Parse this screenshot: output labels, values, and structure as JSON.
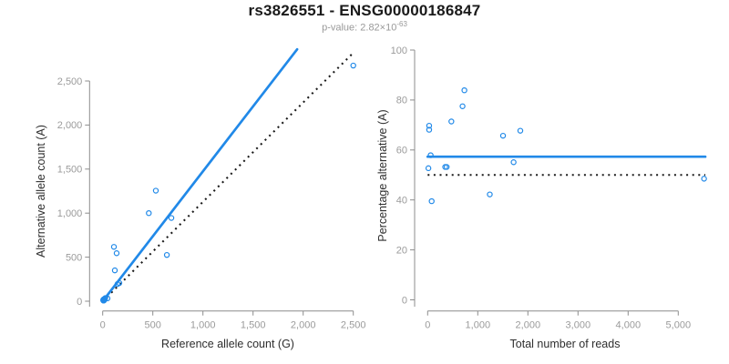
{
  "header": {
    "title": "rs3826551 - ENSG00000186847",
    "pvalue_base": "p-value: 2.82×10",
    "pvalue_exponent": "-63"
  },
  "colors": {
    "accent_blue": "#2189e8",
    "axis_gray": "#8c8c8c",
    "tick_label_gray": "#9b9b9b",
    "dotted_black": "#1a1a1a"
  },
  "chart_data": [
    {
      "type": "scatter",
      "xlabel": "Reference allele count (G)",
      "ylabel": "Alternative allele count (A)",
      "xlim": [
        0,
        2500
      ],
      "ylim": [
        0,
        2500
      ],
      "grid": false,
      "xticks": {
        "values": [
          0,
          500,
          1000,
          1500,
          2000,
          2500
        ],
        "labels": [
          "0",
          "500",
          "1,000",
          "1,500",
          "2,000",
          "2,500"
        ]
      },
      "yticks": {
        "values": [
          0,
          500,
          1000,
          1500,
          2000,
          2500
        ],
        "labels": [
          "0",
          "500",
          "1,000",
          "1,500",
          "2,000",
          "2,500"
        ]
      },
      "points": [
        {
          "x": 530,
          "y": 1255
        },
        {
          "x": 460,
          "y": 1000
        },
        {
          "x": 685,
          "y": 945
        },
        {
          "x": 112,
          "y": 617
        },
        {
          "x": 139,
          "y": 545
        },
        {
          "x": 640,
          "y": 525
        },
        {
          "x": 121,
          "y": 350
        },
        {
          "x": 148,
          "y": 195
        },
        {
          "x": 166,
          "y": 206
        },
        {
          "x": 2500,
          "y": 2675
        },
        {
          "x": 25,
          "y": 35
        },
        {
          "x": 48,
          "y": 32
        },
        {
          "x": 7,
          "y": 8
        },
        {
          "x": 15,
          "y": 25
        },
        {
          "x": 10,
          "y": 18
        },
        {
          "x": 10,
          "y": 14,
          "filled": true
        }
      ],
      "lines": [
        {
          "name": "identity-line",
          "style": "dotted",
          "x1": 0,
          "y1": 0,
          "x2": 2500,
          "y2": 2820
        },
        {
          "name": "fit-line",
          "style": "solid",
          "x1": 0,
          "y1": 0,
          "x2": 1940,
          "y2": 2860
        }
      ]
    },
    {
      "type": "scatter",
      "xlabel": "Total number of reads",
      "ylabel": "Percentage alternative (A)",
      "xlim": [
        0,
        5000
      ],
      "ylim": [
        0,
        100
      ],
      "grid": false,
      "xticks": {
        "values": [
          0,
          1000,
          2000,
          3000,
          4000,
          5000
        ],
        "labels": [
          "0",
          "1,000",
          "2,000",
          "3,000",
          "4,000",
          "5,000"
        ]
      },
      "yticks": {
        "values": [
          0,
          20,
          40,
          60,
          80,
          100
        ],
        "labels": [
          "0",
          "20",
          "40",
          "60",
          "80",
          "100"
        ]
      },
      "points": [
        {
          "x": 30,
          "y": 69.7
        },
        {
          "x": 30,
          "y": 68.1
        },
        {
          "x": 473,
          "y": 71.4
        },
        {
          "x": 696,
          "y": 77.5
        },
        {
          "x": 733,
          "y": 83.9
        },
        {
          "x": 1504,
          "y": 65.7
        },
        {
          "x": 1849,
          "y": 67.7
        },
        {
          "x": 60,
          "y": 57.9
        },
        {
          "x": 15,
          "y": 52.7
        },
        {
          "x": 350,
          "y": 53.2
        },
        {
          "x": 380,
          "y": 53.2
        },
        {
          "x": 1715,
          "y": 55.1
        },
        {
          "x": 1240,
          "y": 42.2
        },
        {
          "x": 80,
          "y": 39.5
        },
        {
          "x": 5515,
          "y": 48.5
        }
      ],
      "lines": [
        {
          "name": "expected-percentage-line",
          "style": "dotted",
          "x1": 0,
          "y1": 50,
          "x2": 5540,
          "y2": 50
        },
        {
          "name": "mean-percentage-line",
          "style": "solid",
          "x1": 0,
          "y1": 57.3,
          "x2": 5540,
          "y2": 57.3
        }
      ]
    }
  ]
}
